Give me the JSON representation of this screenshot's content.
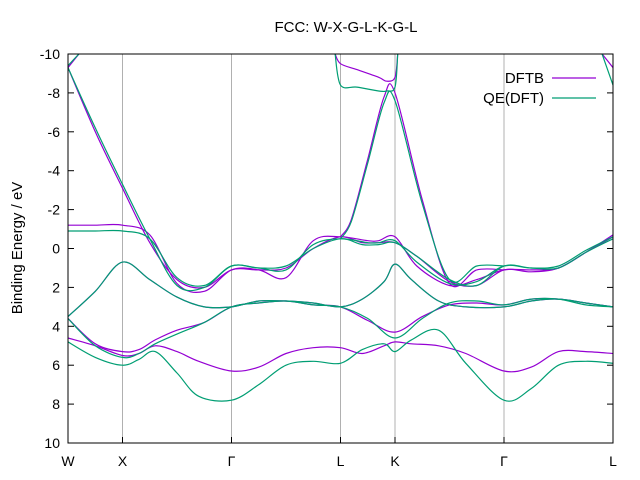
{
  "chart_data": {
    "type": "line",
    "title": "FCC: W-X-G-L-K-G-L",
    "xlabel": "",
    "ylabel": "Binding Energy / eV",
    "ylim": [
      10,
      -10
    ],
    "yticks": [
      -10,
      -8,
      -6,
      -4,
      -2,
      0,
      2,
      4,
      6,
      8,
      10
    ],
    "ytick_labels": [
      "-10",
      "-8",
      "-6",
      "-4",
      "-2",
      "0",
      "2",
      "4",
      "6",
      "8",
      "10"
    ],
    "xlim": [
      0,
      10
    ],
    "xticks": [
      {
        "label": "W",
        "x": 0
      },
      {
        "label": "X",
        "x": 1
      },
      {
        "label": "Γ",
        "x": 3
      },
      {
        "label": "L",
        "x": 5
      },
      {
        "label": "K",
        "x": 6
      },
      {
        "label": "Γ",
        "x": 8
      },
      {
        "label": "L",
        "x": 10
      }
    ],
    "grid": "vertical lines at high-symmetry points",
    "legend_position": "top-right",
    "series": [
      {
        "name": "DFTB",
        "color": "#9400d3",
        "bands": [
          {
            "x": [
              0,
              0.5,
              1,
              1.3,
              1.6,
              2,
              2.4,
              3,
              3.5,
              4,
              4.5,
              5,
              5.4,
              5.8,
              6,
              6.3,
              6.8,
              7.3,
              8,
              8.5,
              9,
              9.5,
              10
            ],
            "y": [
              4.6,
              5.0,
              5.5,
              5.4,
              5.0,
              5.3,
              5.8,
              6.3,
              6.1,
              5.4,
              5.1,
              5.1,
              5.4,
              5.0,
              4.8,
              4.9,
              5.0,
              5.4,
              6.3,
              6.1,
              5.3,
              5.3,
              5.4
            ]
          },
          {
            "x": [
              0,
              0.5,
              1,
              1.3,
              1.6,
              2,
              2.5,
              3,
              3.5,
              4,
              4.5,
              5,
              5.5,
              6,
              6.5,
              7,
              7.5,
              8,
              8.5,
              9,
              9.5,
              10
            ],
            "y": [
              3.6,
              4.9,
              5.3,
              5.2,
              4.7,
              4.2,
              3.8,
              3.0,
              2.8,
              2.7,
              2.9,
              3.0,
              3.7,
              4.3,
              3.5,
              2.9,
              2.8,
              2.9,
              2.6,
              2.6,
              2.8,
              3.0
            ]
          },
          {
            "x": [
              0,
              0.5,
              1,
              1.5,
              2,
              2.5,
              3,
              3.5,
              4,
              4.5,
              5,
              5.4,
              5.8,
              6,
              6.3,
              6.8,
              7.3,
              8,
              8.5,
              9,
              9.5,
              10
            ],
            "y": [
              3.5,
              2.2,
              0.7,
              1.6,
              2.5,
              3.0,
              3.0,
              2.7,
              2.7,
              2.8,
              3.0,
              2.6,
              1.7,
              0.8,
              1.6,
              2.7,
              3.0,
              3.0,
              2.7,
              2.6,
              2.8,
              3.0
            ]
          },
          {
            "x": [
              0,
              0.5,
              1,
              1.5,
              2,
              2.5,
              3,
              3.5,
              4,
              4.5,
              5,
              5.5,
              5.7,
              6,
              6.4,
              7,
              7.5,
              8,
              8.5,
              9,
              9.5,
              10
            ],
            "y": [
              -1.2,
              -1.2,
              -1.2,
              -0.7,
              1.8,
              2.2,
              1.1,
              1.1,
              1.5,
              -0.4,
              -0.6,
              -0.4,
              -0.4,
              -0.6,
              0.9,
              1.9,
              1.6,
              1.1,
              1.1,
              1.0,
              0.2,
              -0.7
            ]
          },
          {
            "x": [
              0,
              0.5,
              1,
              1.5,
              2,
              2.5,
              3,
              3.5,
              4,
              4.5,
              5,
              5.4,
              5.7,
              6,
              6.4,
              7,
              7.5,
              8,
              8.5,
              9,
              9.5,
              10
            ],
            "y": [
              -9.3,
              -6.0,
              -3.1,
              -0.3,
              1.6,
              2.0,
              1.1,
              1.1,
              1.0,
              0.0,
              -0.6,
              -0.3,
              -0.3,
              -0.3,
              0.4,
              1.7,
              1.9,
              1.1,
              1.2,
              1.0,
              0.2,
              -0.6
            ]
          },
          {
            "x": [
              5,
              5.2,
              5.5,
              5.8,
              6,
              6.5,
              7,
              7.5,
              8
            ],
            "y": [
              -0.6,
              -1.5,
              -4.6,
              -7.8,
              -8.0,
              -2.5,
              1.8,
              1.1,
              1.1
            ]
          },
          {
            "x": [
              4.9,
              5,
              5.3,
              5.7,
              5.85,
              6,
              6.05
            ],
            "y": [
              -10,
              -9.5,
              -9.2,
              -8.8,
              -8.6,
              -8.8,
              -10
            ]
          },
          {
            "x": [
              0,
              0.2
            ],
            "y": [
              -9.3,
              -10
            ]
          },
          {
            "x": [
              9.8,
              10
            ],
            "y": [
              -10,
              -9.3
            ]
          }
        ]
      },
      {
        "name": "QE(DFT)",
        "color": "#009e73",
        "bands": [
          {
            "x": [
              0,
              0.5,
              1,
              1.3,
              1.6,
              2,
              2.4,
              3,
              3.5,
              4,
              4.5,
              5,
              5.4,
              5.8,
              6,
              6.3,
              6.8,
              7.3,
              8,
              8.5,
              9,
              9.5,
              10
            ],
            "y": [
              4.8,
              5.6,
              6.0,
              5.7,
              5.3,
              6.4,
              7.6,
              7.8,
              7.0,
              6.0,
              5.8,
              5.9,
              5.2,
              4.9,
              5.3,
              4.7,
              4.2,
              5.9,
              7.8,
              7.2,
              6.0,
              5.8,
              5.9
            ]
          },
          {
            "x": [
              0,
              0.5,
              1,
              1.3,
              1.6,
              2,
              2.5,
              3,
              3.5,
              4,
              4.5,
              5,
              5.5,
              6,
              6.5,
              7,
              7.5,
              8,
              8.5,
              9,
              9.5,
              10
            ],
            "y": [
              3.6,
              5.0,
              5.6,
              5.4,
              4.9,
              4.4,
              3.8,
              3.0,
              2.8,
              2.7,
              2.9,
              3.0,
              3.6,
              4.6,
              3.6,
              2.8,
              2.7,
              2.9,
              2.6,
              2.6,
              2.9,
              3.0
            ]
          },
          {
            "x": [
              0,
              0.5,
              1,
              1.5,
              2,
              2.5,
              3,
              3.5,
              4,
              4.5,
              5,
              5.4,
              5.8,
              6,
              6.3,
              6.8,
              7.3,
              8,
              8.5,
              9,
              9.5,
              10
            ],
            "y": [
              3.5,
              2.2,
              0.7,
              1.6,
              2.5,
              3.0,
              3.0,
              2.7,
              2.7,
              2.8,
              3.0,
              2.6,
              1.7,
              0.8,
              1.6,
              2.7,
              3.0,
              3.0,
              2.7,
              2.6,
              2.8,
              3.0
            ]
          },
          {
            "x": [
              0,
              0.5,
              1,
              1.5,
              2,
              2.5,
              3,
              3.5,
              4,
              4.5,
              5,
              5.5,
              5.7,
              6,
              6.4,
              7,
              7.5,
              8,
              8.5,
              9,
              9.5,
              10
            ],
            "y": [
              -0.9,
              -0.9,
              -0.9,
              -0.5,
              1.5,
              1.9,
              0.9,
              1.0,
              1.1,
              -0.2,
              -0.5,
              -0.3,
              -0.3,
              -0.4,
              0.7,
              1.8,
              1.7,
              0.9,
              1.0,
              0.9,
              0.1,
              -0.6
            ]
          },
          {
            "x": [
              0,
              0.5,
              1,
              1.5,
              2,
              2.5,
              3,
              3.5,
              4,
              4.5,
              5,
              5.4,
              5.7,
              6,
              6.4,
              7,
              7.5,
              8,
              8.5,
              9,
              9.5,
              10
            ],
            "y": [
              -9.3,
              -6.2,
              -3.3,
              -0.5,
              1.9,
              2.0,
              0.9,
              1.0,
              0.9,
              0.0,
              -0.5,
              -0.2,
              -0.2,
              -0.3,
              0.4,
              1.6,
              1.9,
              0.9,
              1.0,
              1.0,
              0.2,
              -0.5
            ]
          },
          {
            "x": [
              5,
              5.2,
              5.5,
              5.8,
              6,
              6.5,
              7,
              7.5,
              8
            ],
            "y": [
              -0.5,
              -1.4,
              -4.4,
              -7.5,
              -7.6,
              -2.3,
              1.6,
              0.9,
              0.9
            ]
          },
          {
            "x": [
              4.9,
              5,
              5.3,
              5.7,
              5.85,
              6,
              6.05
            ],
            "y": [
              -10,
              -8.4,
              -8.3,
              -8.1,
              -8.1,
              -8.3,
              -10
            ]
          },
          {
            "x": [
              0,
              0.2
            ],
            "y": [
              -9.4,
              -10
            ]
          },
          {
            "x": [
              9.8,
              10
            ],
            "y": [
              -10,
              -8.4
            ]
          }
        ]
      }
    ]
  }
}
